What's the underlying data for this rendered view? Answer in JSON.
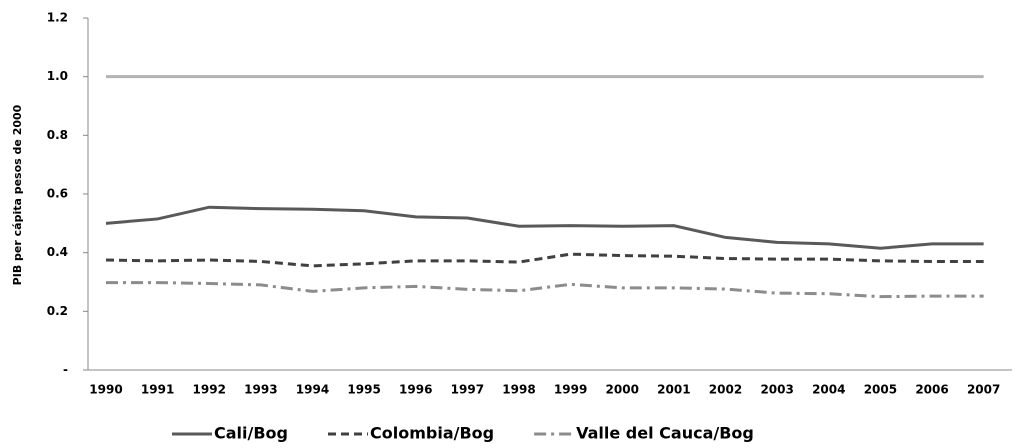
{
  "chart_data": {
    "type": "line",
    "y_label": "PIB per cápita pesos de 2000",
    "categories": [
      "1990",
      "1991",
      "1992",
      "1993",
      "1994",
      "1995",
      "1996",
      "1997",
      "1998",
      "1999",
      "2000",
      "2001",
      "2002",
      "2003",
      "2004",
      "2005",
      "2006",
      "2007"
    ],
    "series": [
      {
        "color": "#b3b3b3",
        "dash": "solid",
        "values": [
          1,
          1,
          1,
          1,
          1,
          1,
          1,
          1,
          1,
          1,
          1,
          1,
          1,
          1,
          1,
          1,
          1,
          1
        ]
      },
      {
        "name": "Cali/Bog",
        "color": "#595959",
        "dash": "solid",
        "values": [
          0.5,
          0.515,
          0.555,
          0.55,
          0.548,
          0.543,
          0.522,
          0.518,
          0.49,
          0.492,
          0.49,
          0.492,
          0.452,
          0.435,
          0.43,
          0.415,
          0.43,
          0.43
        ]
      },
      {
        "name": "Colombia/Bog",
        "color": "#404040",
        "dash": "dash",
        "values": [
          0.375,
          0.372,
          0.375,
          0.37,
          0.355,
          0.362,
          0.372,
          0.372,
          0.368,
          0.395,
          0.39,
          0.388,
          0.38,
          0.378,
          0.378,
          0.372,
          0.37,
          0.37
        ]
      },
      {
        "name": "Valle del Cauca/Bog",
        "color": "#8c8c8c",
        "dash": "dashdot",
        "values": [
          0.298,
          0.298,
          0.295,
          0.29,
          0.268,
          0.28,
          0.285,
          0.275,
          0.27,
          0.292,
          0.28,
          0.28,
          0.276,
          0.262,
          0.26,
          0.25,
          0.252,
          0.252
        ]
      }
    ],
    "ylim": [
      0,
      1.2
    ],
    "yticks": [
      {
        "value": 0,
        "label": "-"
      },
      0.2,
      0.4,
      0.6,
      0.8,
      {
        "value": 1.0,
        "label": "1.0"
      },
      1.2
    ],
    "legend": "bottom"
  }
}
